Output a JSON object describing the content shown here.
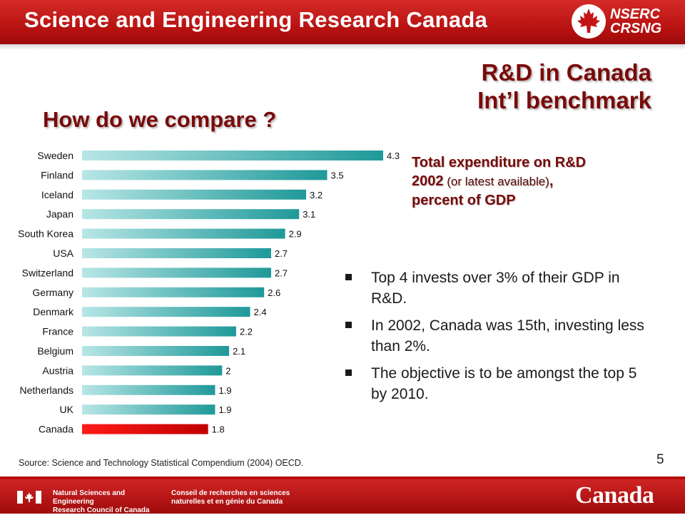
{
  "header": {
    "title": "Science and Engineering Research Canada",
    "logo_lines": [
      "NSERC",
      "CRSNG"
    ]
  },
  "headings": {
    "line1": "R&D in Canada",
    "line2": "Int’l benchmark",
    "compare": "How do we compare ?"
  },
  "chart_title": {
    "bold_line1": "Total expenditure on R&D",
    "bold_year": "2002",
    "normal": " (or latest available)",
    "comma": ",",
    "bold_line3": "percent of GDP"
  },
  "bullets": [
    "Top 4 invests over 3% of their GDP in R&D.",
    "In 2002, Canada was 15th, investing less than 2%.",
    "The objective is to be amongst the top 5 by 2010."
  ],
  "source": "Source: Science and Technology Statistical Compendium (2004) OECD.",
  "page_number": "5",
  "footer": {
    "english_lines": [
      "Natural Sciences and Engineering",
      "Research Council of Canada"
    ],
    "french_lines": [
      "Conseil de recherches en sciences",
      "naturelles et en génie du Canada"
    ],
    "wordmark": "Canada"
  },
  "colors": {
    "banner": "#b4100f",
    "heading": "#7a0a0a",
    "bar_start": "#b8e6e6",
    "bar_end": "#1f9999",
    "highlight_start": "#ff1a1a",
    "highlight_end": "#c00000"
  },
  "chart_data": {
    "type": "bar",
    "orientation": "horizontal",
    "categories": [
      "Sweden",
      "Finland",
      "Iceland",
      "Japan",
      "South Korea",
      "USA",
      "Switzerland",
      "Germany",
      "Denmark",
      "France",
      "Belgium",
      "Austria",
      "Netherlands",
      "UK",
      "Canada"
    ],
    "values": [
      4.3,
      3.5,
      3.2,
      3.1,
      2.9,
      2.7,
      2.7,
      2.6,
      2.4,
      2.2,
      2.1,
      2,
      1.9,
      1.9,
      1.8
    ],
    "value_labels": [
      "4.3",
      "3.5",
      "3.2",
      "3.1",
      "2.9",
      "2.7",
      "2.7",
      "2.6",
      "2.4",
      "2.2",
      "2.1",
      "2",
      "1.9",
      "1.9",
      "1.8"
    ],
    "highlight": "Canada",
    "xlim": [
      0,
      4.3
    ],
    "grid": false,
    "legend": "none",
    "title": "Total expenditure on R&D 2002 (or latest available), percent of GDP"
  }
}
